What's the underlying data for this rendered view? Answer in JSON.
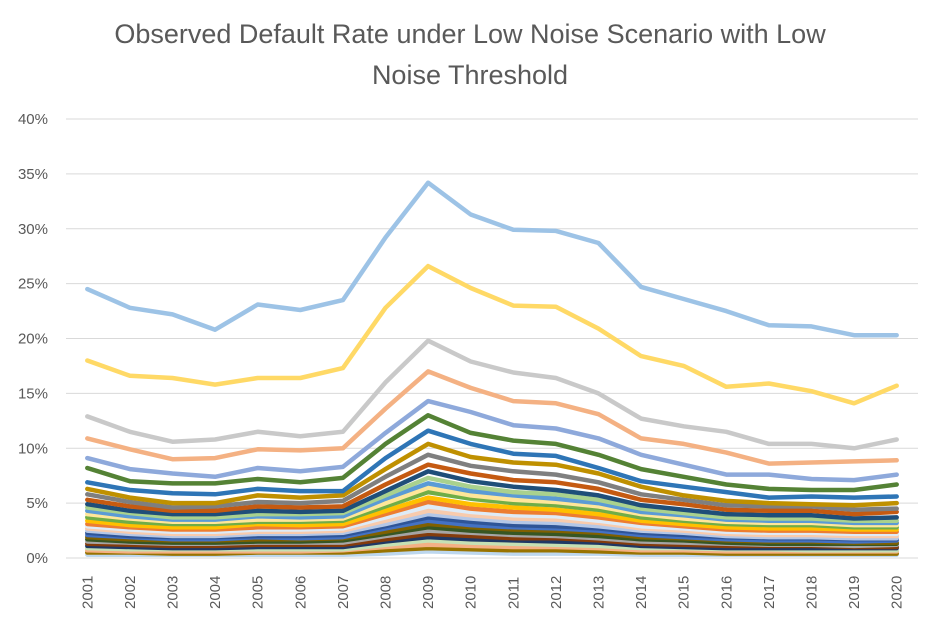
{
  "chart_data": {
    "type": "line",
    "title": "Observed Default Rate under Low Noise Scenario with Low Noise Threshold",
    "title_lines": [
      "Observed Default Rate under Low Noise Scenario with Low",
      "Noise Threshold"
    ],
    "xlabel": "",
    "ylabel": "",
    "ylim": [
      0,
      0.4
    ],
    "y_ticks": [
      0,
      0.05,
      0.1,
      0.15,
      0.2,
      0.25,
      0.3,
      0.35,
      0.4
    ],
    "y_tick_labels": [
      "0%",
      "5%",
      "10%",
      "15%",
      "20%",
      "25%",
      "30%",
      "35%",
      "40%"
    ],
    "grid": true,
    "legend": "none",
    "x": [
      "2001",
      "2002",
      "2003",
      "2004",
      "2005",
      "2006",
      "2007",
      "2008",
      "2009",
      "2010",
      "2011",
      "2012",
      "2013",
      "2014",
      "2015",
      "2016",
      "2017",
      "2018",
      "2019",
      "2020"
    ],
    "series": [
      {
        "color": "#9DC3E6",
        "values": [
          0.245,
          0.228,
          0.222,
          0.208,
          0.231,
          0.226,
          0.235,
          0.292,
          0.342,
          0.313,
          0.299,
          0.298,
          0.287,
          0.247,
          0.236,
          0.225,
          0.212,
          0.211,
          0.203,
          0.203
        ]
      },
      {
        "color": "#FFD966",
        "values": [
          0.18,
          0.166,
          0.164,
          0.158,
          0.164,
          0.164,
          0.173,
          0.228,
          0.266,
          0.246,
          0.23,
          0.229,
          0.209,
          0.184,
          0.175,
          0.156,
          0.159,
          0.152,
          0.141,
          0.157
        ]
      },
      {
        "color": "#C9C9C9",
        "values": [
          0.129,
          0.115,
          0.106,
          0.108,
          0.115,
          0.111,
          0.115,
          0.16,
          0.198,
          0.179,
          0.169,
          0.164,
          0.15,
          0.127,
          0.12,
          0.115,
          0.104,
          0.104,
          0.1,
          0.108
        ]
      },
      {
        "color": "#F4B183",
        "values": [
          0.109,
          0.099,
          0.09,
          0.091,
          0.099,
          0.098,
          0.1,
          0.136,
          0.17,
          0.155,
          0.143,
          0.141,
          0.131,
          0.109,
          0.104,
          0.096,
          0.086,
          0.087,
          0.088,
          0.089
        ]
      },
      {
        "color": "#8EA9DB",
        "values": [
          0.091,
          0.081,
          0.077,
          0.074,
          0.082,
          0.079,
          0.083,
          0.114,
          0.143,
          0.133,
          0.121,
          0.118,
          0.109,
          0.094,
          0.085,
          0.076,
          0.076,
          0.072,
          0.071,
          0.076
        ]
      },
      {
        "color": "#548235",
        "values": [
          0.082,
          0.07,
          0.068,
          0.068,
          0.072,
          0.069,
          0.073,
          0.104,
          0.13,
          0.114,
          0.107,
          0.104,
          0.094,
          0.081,
          0.074,
          0.067,
          0.063,
          0.062,
          0.062,
          0.067
        ]
      },
      {
        "color": "#2E75B6",
        "values": [
          0.069,
          0.062,
          0.059,
          0.058,
          0.063,
          0.061,
          0.061,
          0.091,
          0.116,
          0.104,
          0.095,
          0.093,
          0.082,
          0.07,
          0.065,
          0.06,
          0.055,
          0.056,
          0.055,
          0.056
        ]
      },
      {
        "color": "#BF9000",
        "values": [
          0.063,
          0.055,
          0.05,
          0.05,
          0.057,
          0.055,
          0.057,
          0.081,
          0.104,
          0.092,
          0.087,
          0.085,
          0.077,
          0.065,
          0.057,
          0.052,
          0.05,
          0.049,
          0.048,
          0.05
        ]
      },
      {
        "color": "#7F7F7F",
        "values": [
          0.058,
          0.051,
          0.046,
          0.047,
          0.051,
          0.05,
          0.052,
          0.074,
          0.094,
          0.084,
          0.079,
          0.076,
          0.069,
          0.058,
          0.053,
          0.048,
          0.047,
          0.047,
          0.044,
          0.045
        ]
      },
      {
        "color": "#C55A11",
        "values": [
          0.053,
          0.047,
          0.043,
          0.043,
          0.047,
          0.046,
          0.047,
          0.067,
          0.085,
          0.077,
          0.071,
          0.069,
          0.063,
          0.053,
          0.049,
          0.044,
          0.043,
          0.043,
          0.04,
          0.042
        ]
      },
      {
        "color": "#1F4E79",
        "values": [
          0.049,
          0.043,
          0.04,
          0.04,
          0.043,
          0.042,
          0.043,
          0.061,
          0.079,
          0.07,
          0.065,
          0.062,
          0.057,
          0.048,
          0.044,
          0.04,
          0.039,
          0.039,
          0.036,
          0.037
        ]
      },
      {
        "color": "#A9D18E",
        "values": [
          0.046,
          0.041,
          0.037,
          0.037,
          0.04,
          0.04,
          0.041,
          0.057,
          0.073,
          0.065,
          0.06,
          0.058,
          0.053,
          0.045,
          0.041,
          0.037,
          0.036,
          0.036,
          0.034,
          0.034
        ]
      },
      {
        "color": "#5B9BD5",
        "values": [
          0.043,
          0.038,
          0.035,
          0.035,
          0.038,
          0.037,
          0.038,
          0.054,
          0.068,
          0.061,
          0.057,
          0.054,
          0.05,
          0.042,
          0.039,
          0.035,
          0.034,
          0.034,
          0.032,
          0.032
        ]
      },
      {
        "color": "#FFE699",
        "values": [
          0.04,
          0.036,
          0.033,
          0.033,
          0.035,
          0.035,
          0.036,
          0.05,
          0.064,
          0.057,
          0.053,
          0.051,
          0.047,
          0.04,
          0.036,
          0.033,
          0.032,
          0.032,
          0.03,
          0.03
        ]
      },
      {
        "color": "#70AD47",
        "values": [
          0.037,
          0.033,
          0.031,
          0.031,
          0.033,
          0.033,
          0.034,
          0.047,
          0.06,
          0.054,
          0.05,
          0.048,
          0.044,
          0.037,
          0.034,
          0.031,
          0.03,
          0.03,
          0.028,
          0.028
        ]
      },
      {
        "color": "#FFC000",
        "values": [
          0.034,
          0.03,
          0.028,
          0.028,
          0.031,
          0.03,
          0.031,
          0.043,
          0.055,
          0.049,
          0.046,
          0.044,
          0.04,
          0.034,
          0.031,
          0.028,
          0.027,
          0.027,
          0.026,
          0.026
        ]
      },
      {
        "color": "#ED7D31",
        "values": [
          0.031,
          0.028,
          0.026,
          0.026,
          0.028,
          0.028,
          0.029,
          0.04,
          0.051,
          0.045,
          0.042,
          0.041,
          0.037,
          0.032,
          0.029,
          0.026,
          0.025,
          0.025,
          0.024,
          0.024
        ]
      },
      {
        "color": "#DEEBF7",
        "values": [
          0.029,
          0.026,
          0.024,
          0.024,
          0.026,
          0.026,
          0.027,
          0.037,
          0.047,
          0.042,
          0.039,
          0.038,
          0.034,
          0.029,
          0.027,
          0.024,
          0.023,
          0.023,
          0.022,
          0.022
        ]
      },
      {
        "color": "#F8CBAD",
        "values": [
          0.027,
          0.024,
          0.022,
          0.022,
          0.024,
          0.024,
          0.025,
          0.034,
          0.043,
          0.039,
          0.036,
          0.035,
          0.032,
          0.027,
          0.025,
          0.022,
          0.021,
          0.021,
          0.02,
          0.02
        ]
      },
      {
        "color": "#B4C7E7",
        "values": [
          0.025,
          0.022,
          0.02,
          0.02,
          0.022,
          0.022,
          0.023,
          0.031,
          0.04,
          0.036,
          0.033,
          0.032,
          0.029,
          0.025,
          0.023,
          0.02,
          0.019,
          0.019,
          0.018,
          0.018
        ]
      },
      {
        "color": "#2F5597",
        "values": [
          0.023,
          0.02,
          0.019,
          0.019,
          0.02,
          0.02,
          0.021,
          0.029,
          0.037,
          0.033,
          0.03,
          0.029,
          0.027,
          0.023,
          0.021,
          0.019,
          0.018,
          0.018,
          0.017,
          0.017
        ]
      },
      {
        "color": "#4472C4",
        "values": [
          0.021,
          0.019,
          0.017,
          0.017,
          0.019,
          0.018,
          0.019,
          0.027,
          0.034,
          0.03,
          0.028,
          0.027,
          0.025,
          0.021,
          0.019,
          0.017,
          0.016,
          0.016,
          0.015,
          0.016
        ]
      },
      {
        "color": "#806000",
        "values": [
          0.019,
          0.017,
          0.016,
          0.016,
          0.017,
          0.017,
          0.018,
          0.024,
          0.031,
          0.028,
          0.026,
          0.025,
          0.023,
          0.019,
          0.018,
          0.016,
          0.015,
          0.015,
          0.014,
          0.014
        ]
      },
      {
        "color": "#375623",
        "values": [
          0.017,
          0.015,
          0.014,
          0.014,
          0.015,
          0.015,
          0.016,
          0.022,
          0.028,
          0.025,
          0.023,
          0.022,
          0.02,
          0.017,
          0.016,
          0.014,
          0.013,
          0.013,
          0.013,
          0.013
        ]
      },
      {
        "color": "#A5A5A5",
        "values": [
          0.015,
          0.014,
          0.013,
          0.013,
          0.014,
          0.014,
          0.014,
          0.02,
          0.025,
          0.023,
          0.021,
          0.02,
          0.018,
          0.015,
          0.014,
          0.013,
          0.012,
          0.012,
          0.011,
          0.012
        ]
      },
      {
        "color": "#843C0C",
        "values": [
          0.013,
          0.012,
          0.011,
          0.011,
          0.012,
          0.012,
          0.012,
          0.017,
          0.022,
          0.02,
          0.018,
          0.018,
          0.016,
          0.013,
          0.012,
          0.011,
          0.011,
          0.011,
          0.01,
          0.01
        ]
      },
      {
        "color": "#203864",
        "values": [
          0.011,
          0.01,
          0.009,
          0.009,
          0.01,
          0.01,
          0.01,
          0.015,
          0.019,
          0.017,
          0.016,
          0.015,
          0.014,
          0.011,
          0.01,
          0.009,
          0.009,
          0.009,
          0.009,
          0.009
        ]
      },
      {
        "color": "#C5E0B4",
        "values": [
          0.009,
          0.008,
          0.008,
          0.008,
          0.008,
          0.008,
          0.008,
          0.012,
          0.016,
          0.014,
          0.013,
          0.012,
          0.011,
          0.009,
          0.009,
          0.008,
          0.008,
          0.007,
          0.007,
          0.007
        ]
      },
      {
        "color": "#F4B084",
        "values": [
          0.007,
          0.006,
          0.006,
          0.006,
          0.006,
          0.006,
          0.007,
          0.01,
          0.012,
          0.011,
          0.01,
          0.01,
          0.009,
          0.007,
          0.007,
          0.006,
          0.006,
          0.006,
          0.006,
          0.006
        ]
      },
      {
        "color": "#997300",
        "values": [
          0.005,
          0.005,
          0.004,
          0.004,
          0.005,
          0.005,
          0.005,
          0.007,
          0.009,
          0.008,
          0.007,
          0.007,
          0.006,
          0.005,
          0.005,
          0.004,
          0.004,
          0.004,
          0.004,
          0.004
        ]
      },
      {
        "color": "#BDD7EE",
        "values": [
          0.003,
          0.003,
          0.003,
          0.003,
          0.003,
          0.003,
          0.003,
          0.004,
          0.006,
          0.005,
          0.004,
          0.004,
          0.004,
          0.003,
          0.003,
          0.003,
          0.003,
          0.003,
          0.003,
          0.003
        ]
      }
    ]
  }
}
